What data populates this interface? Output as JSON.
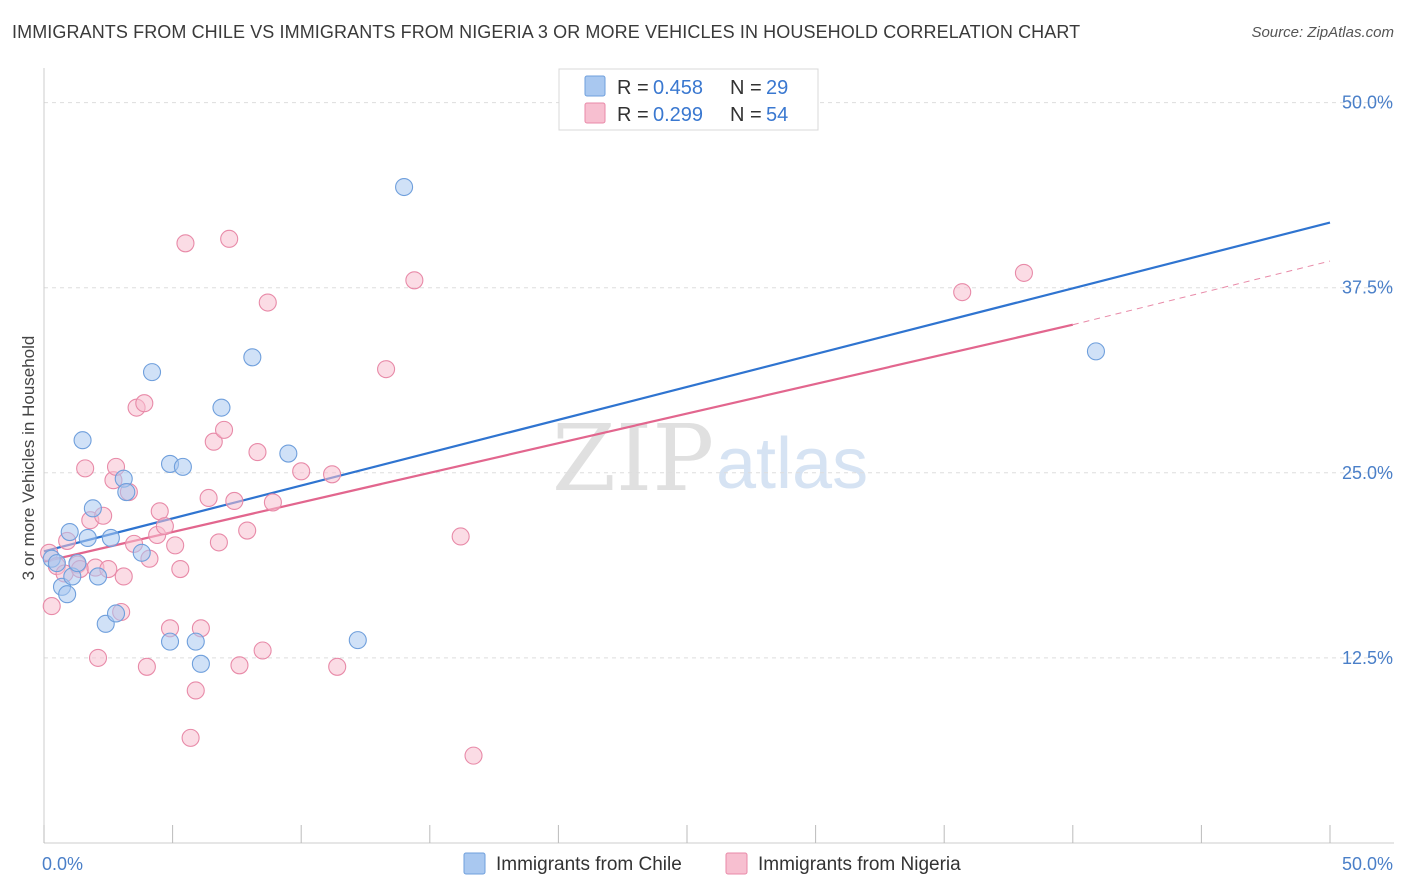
{
  "header": {
    "title": "IMMIGRANTS FROM CHILE VS IMMIGRANTS FROM NIGERIA 3 OR MORE VEHICLES IN HOUSEHOLD CORRELATION CHART",
    "source": "Source: ZipAtlas.com"
  },
  "legend": {
    "chile": {
      "r_label": "R = ",
      "r_value": "0.458",
      "n_label": "N = ",
      "n_value": "29"
    },
    "nigeria": {
      "r_label": "R = ",
      "r_value": "0.299",
      "n_label": "N = ",
      "n_value": "54"
    }
  },
  "watermark": {
    "zip": "ZIP",
    "atlas": "atlas"
  },
  "colors": {
    "chile_fill": "#a9c8f0",
    "chile_stroke": "#6f9fdc",
    "chile_line": "#2f74d0",
    "nigeria_fill": "#f7bfd0",
    "nigeria_stroke": "#e88aa8",
    "nigeria_line": "#e2668e",
    "grid": "#dddddd",
    "tick_text": "#4a7fc8"
  },
  "chart_data": {
    "type": "scatter",
    "title": "IMMIGRANTS FROM CHILE VS IMMIGRANTS FROM NIGERIA 3 OR MORE VEHICLES IN HOUSEHOLD CORRELATION CHART",
    "xlabel": "",
    "ylabel": "3 or more Vehicles in Household",
    "xlim": [
      0,
      50
    ],
    "ylim": [
      0,
      52
    ],
    "x_tick_labels": [
      "0.0%",
      "50.0%"
    ],
    "y_ticks": [
      12.5,
      25.0,
      37.5,
      50.0
    ],
    "y_tick_labels": [
      "12.5%",
      "25.0%",
      "37.5%",
      "50.0%"
    ],
    "grid": true,
    "legend_position": "top-center",
    "series": [
      {
        "name": "Immigrants from Chile",
        "points": [
          [
            0.3,
            19.2
          ],
          [
            0.5,
            18.9
          ],
          [
            0.7,
            17.3
          ],
          [
            0.9,
            16.8
          ],
          [
            1.0,
            21.0
          ],
          [
            1.1,
            18.0
          ],
          [
            1.3,
            18.9
          ],
          [
            1.5,
            27.2
          ],
          [
            1.7,
            20.6
          ],
          [
            1.9,
            22.6
          ],
          [
            2.1,
            18.0
          ],
          [
            2.4,
            14.8
          ],
          [
            2.6,
            20.6
          ],
          [
            2.8,
            15.5
          ],
          [
            3.1,
            24.6
          ],
          [
            3.2,
            23.7
          ],
          [
            3.8,
            19.6
          ],
          [
            4.2,
            31.8
          ],
          [
            4.9,
            13.6
          ],
          [
            4.9,
            25.6
          ],
          [
            5.4,
            25.4
          ],
          [
            5.9,
            13.6
          ],
          [
            6.1,
            12.1
          ],
          [
            6.9,
            29.4
          ],
          [
            8.1,
            32.8
          ],
          [
            9.5,
            26.3
          ],
          [
            12.2,
            13.7
          ],
          [
            14.0,
            44.3
          ],
          [
            40.9,
            33.2
          ]
        ],
        "trend": {
          "x": [
            0,
            50
          ],
          "y": [
            19.7,
            41.9
          ]
        }
      },
      {
        "name": "Immigrants from Nigeria",
        "points": [
          [
            0.2,
            19.6
          ],
          [
            0.3,
            16.0
          ],
          [
            0.5,
            18.7
          ],
          [
            0.8,
            18.2
          ],
          [
            0.9,
            20.4
          ],
          [
            1.3,
            18.8
          ],
          [
            1.4,
            18.5
          ],
          [
            1.6,
            25.3
          ],
          [
            1.8,
            21.8
          ],
          [
            2.0,
            18.6
          ],
          [
            2.1,
            12.5
          ],
          [
            2.3,
            22.1
          ],
          [
            2.5,
            18.5
          ],
          [
            2.7,
            24.5
          ],
          [
            2.8,
            25.4
          ],
          [
            3.0,
            15.6
          ],
          [
            3.1,
            18.0
          ],
          [
            3.3,
            23.7
          ],
          [
            3.5,
            20.2
          ],
          [
            3.6,
            29.4
          ],
          [
            3.9,
            29.7
          ],
          [
            4.0,
            11.9
          ],
          [
            4.1,
            19.2
          ],
          [
            4.4,
            20.8
          ],
          [
            4.5,
            22.4
          ],
          [
            4.7,
            21.4
          ],
          [
            4.9,
            14.5
          ],
          [
            5.1,
            20.1
          ],
          [
            5.3,
            18.5
          ],
          [
            5.5,
            40.5
          ],
          [
            5.7,
            7.1
          ],
          [
            5.9,
            10.3
          ],
          [
            6.1,
            14.5
          ],
          [
            6.4,
            23.3
          ],
          [
            6.6,
            27.1
          ],
          [
            6.8,
            20.3
          ],
          [
            7.0,
            27.9
          ],
          [
            7.2,
            40.8
          ],
          [
            7.4,
            23.1
          ],
          [
            7.6,
            12.0
          ],
          [
            7.9,
            21.1
          ],
          [
            8.3,
            26.4
          ],
          [
            8.5,
            13.0
          ],
          [
            8.7,
            36.5
          ],
          [
            8.9,
            23.0
          ],
          [
            10.0,
            25.1
          ],
          [
            11.2,
            24.9
          ],
          [
            11.4,
            11.9
          ],
          [
            13.3,
            32.0
          ],
          [
            14.4,
            38.0
          ],
          [
            16.2,
            20.7
          ],
          [
            16.7,
            5.9
          ],
          [
            35.7,
            37.2
          ],
          [
            38.1,
            38.5
          ]
        ],
        "trend": {
          "x": [
            0,
            40
          ],
          "y": [
            19.0,
            35.0
          ]
        },
        "trend_extension": {
          "x": [
            40,
            50
          ],
          "y": [
            35.0,
            39.3
          ]
        }
      }
    ]
  },
  "bottom_legend": {
    "chile_label": "Immigrants from Chile",
    "nigeria_label": "Immigrants from Nigeria"
  }
}
